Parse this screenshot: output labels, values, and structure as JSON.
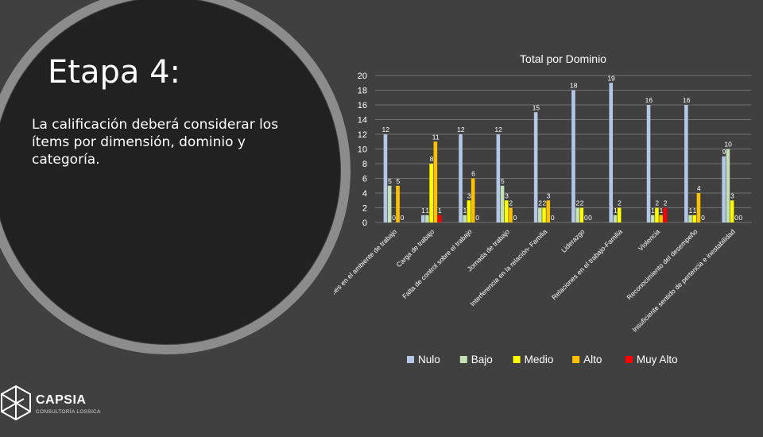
{
  "slide": {
    "title": "Etapa 4:",
    "body": "La calificación deberá considerar los ítems por dimensión, dominio y categoría."
  },
  "logo": {
    "name": "CAPSIA",
    "subtitle": "CONSULTORÍA LOSSICA"
  },
  "colors": {
    "background": "#404040",
    "circle": "#212121",
    "ring": "#8c8c8c",
    "text": "#ffffff",
    "gridline": "#6f6f6f"
  },
  "chart_data": {
    "type": "bar",
    "title": "Total por Dominio",
    "xlabel": "",
    "ylabel": "",
    "ylim": [
      0,
      20
    ],
    "yticks": [
      0,
      2,
      4,
      6,
      8,
      10,
      12,
      14,
      16,
      18,
      20
    ],
    "grid": true,
    "legend_position": "bottom",
    "categories": [
      "Condiciones en el ambiente de trabajo",
      "Carga de trabajo",
      "Falta de control sobre el trabajo",
      "Jornada de trabajo",
      "Interferencia en la relación- Familia",
      "Liderazgo",
      "Relaciones en el trabajo-Familia",
      "Violencia",
      "Reconocimiento del desempeño",
      "Insuficiente sentido de pertencia e inestabilidad"
    ],
    "series": [
      {
        "name": "Nulo",
        "color": "#b4c7e7",
        "values": [
          12,
          1,
          12,
          12,
          15,
          18,
          19,
          16,
          16,
          9
        ],
        "labels": [
          "12",
          "1",
          "12",
          "12",
          "15",
          "18",
          "19",
          "16",
          "16",
          "9"
        ]
      },
      {
        "name": "Bajo",
        "color": "#c5e0b4",
        "values": [
          5,
          1,
          1,
          5,
          2,
          2,
          1,
          1,
          1,
          10
        ],
        "labels": [
          "5",
          "1",
          "1",
          "5",
          "2",
          "2",
          "1",
          "1",
          "1",
          "10"
        ]
      },
      {
        "name": "Medio",
        "color": "#ffff00",
        "values": [
          0,
          8,
          3,
          3,
          2,
          2,
          2,
          2,
          1,
          3
        ],
        "labels": [
          "0",
          "8",
          "3",
          "3",
          "2",
          "2",
          "2",
          "2",
          "1",
          "3"
        ]
      },
      {
        "name": "Alto",
        "color": "#ffc000",
        "values": [
          5,
          11,
          6,
          2,
          3,
          0,
          0,
          1,
          4,
          0
        ],
        "labels": [
          "5",
          "11",
          "6",
          "2",
          "3",
          "0",
          "",
          "1",
          "4",
          "0"
        ]
      },
      {
        "name": "Muy Alto",
        "color": "#ff0000",
        "values": [
          0,
          1,
          0,
          0,
          0,
          0,
          0,
          2,
          0,
          0
        ],
        "labels": [
          "0",
          "1",
          "0",
          "0",
          "0",
          "0",
          "",
          "2",
          "0",
          "0"
        ]
      }
    ]
  }
}
